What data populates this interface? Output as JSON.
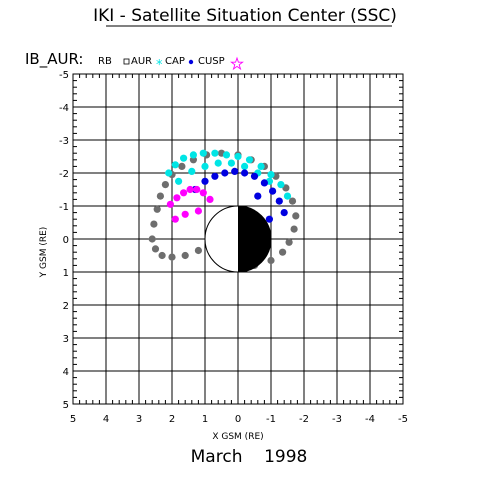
{
  "header": {
    "title": "IKI - Satellite Situation Center (SSC)",
    "date": "March    1998"
  },
  "legend": {
    "prefix": "IB_AUR:",
    "items": [
      {
        "label": "RB",
        "symbol": "none"
      },
      {
        "label": "AUR",
        "symbol": "square"
      },
      {
        "label": "CAP",
        "symbol": "asterisk",
        "color": "#00e5e5"
      },
      {
        "label": "CUSP",
        "symbol": "star",
        "color": "#ff00ff"
      }
    ]
  },
  "chart_data": {
    "type": "scatter",
    "xlabel": "X GSM (RE)",
    "ylabel": "Y GSM (RE)",
    "xlim": [
      5,
      -5
    ],
    "ylim": [
      -5,
      5
    ],
    "x_ticks": [
      "5",
      "4",
      "3",
      "2",
      "1",
      "0",
      "-1",
      "-2",
      "-3",
      "-4",
      "-5"
    ],
    "y_ticks": [
      "-5",
      "-4",
      "-3",
      "-2",
      "-1",
      "0",
      "1",
      "2",
      "3",
      "4",
      "5"
    ],
    "grid": true,
    "colors": {
      "rb": "#6e6e6e",
      "cap": "#00e5e5",
      "aur": "#0000e0",
      "cusp": "#ff00ff",
      "earth_night": "#000000",
      "earth_day": "#ffffff"
    },
    "series": [
      {
        "name": "RB",
        "color": "#6e6e6e",
        "x": [
          2.6,
          2.55,
          2.45,
          2.35,
          2.2,
          2.0,
          1.7,
          1.35,
          0.95,
          0.5,
          0.0,
          -0.4,
          -0.8,
          -1.15,
          -1.45,
          -1.65,
          -1.75,
          -1.7,
          -1.55,
          -1.35,
          -1.0,
          -0.5,
          2.5,
          2.3,
          2.0,
          1.6,
          1.2
        ],
        "y": [
          0.0,
          -0.45,
          -0.9,
          -1.3,
          -1.65,
          -1.95,
          -2.2,
          -2.4,
          -2.55,
          -2.6,
          -2.55,
          -2.4,
          -2.2,
          -1.9,
          -1.55,
          -1.15,
          -0.7,
          -0.3,
          0.1,
          0.4,
          0.65,
          0.8,
          0.3,
          0.5,
          0.55,
          0.5,
          0.35
        ]
      },
      {
        "name": "CAP",
        "color": "#00e5e5",
        "x": [
          2.1,
          1.9,
          1.65,
          1.35,
          1.05,
          0.7,
          0.35,
          0.0,
          -0.35,
          -0.7,
          -1.0,
          -1.3,
          -1.5,
          1.8,
          1.4,
          1.0,
          0.6,
          0.2,
          -0.2,
          -0.6,
          -0.95
        ],
        "y": [
          -2.0,
          -2.25,
          -2.45,
          -2.55,
          -2.6,
          -2.6,
          -2.55,
          -2.5,
          -2.4,
          -2.2,
          -1.95,
          -1.65,
          -1.3,
          -1.75,
          -2.05,
          -2.2,
          -2.3,
          -2.3,
          -2.2,
          -2.0,
          -1.75
        ]
      },
      {
        "name": "AUR",
        "color": "#0000e0",
        "x": [
          1.3,
          1.0,
          0.7,
          0.4,
          0.1,
          -0.2,
          -0.5,
          -0.8,
          -1.05,
          -1.25,
          -1.4,
          -0.95,
          -0.6,
          0.3,
          0.4,
          0.3
        ],
        "y": [
          -1.5,
          -1.75,
          -1.9,
          -2.0,
          -2.05,
          -2.0,
          -1.9,
          -1.7,
          -1.45,
          -1.15,
          -0.8,
          -0.6,
          -1.3,
          0.15,
          0.25,
          0.35
        ]
      },
      {
        "name": "CUSP",
        "color": "#ff00ff",
        "x": [
          2.05,
          1.85,
          1.65,
          1.45,
          1.25,
          1.05,
          0.85,
          1.6,
          1.2,
          1.9,
          0.55
        ],
        "y": [
          -1.05,
          -1.25,
          -1.4,
          -1.5,
          -1.5,
          -1.4,
          -1.2,
          -0.75,
          -0.85,
          -0.6,
          0.2
        ]
      }
    ]
  }
}
